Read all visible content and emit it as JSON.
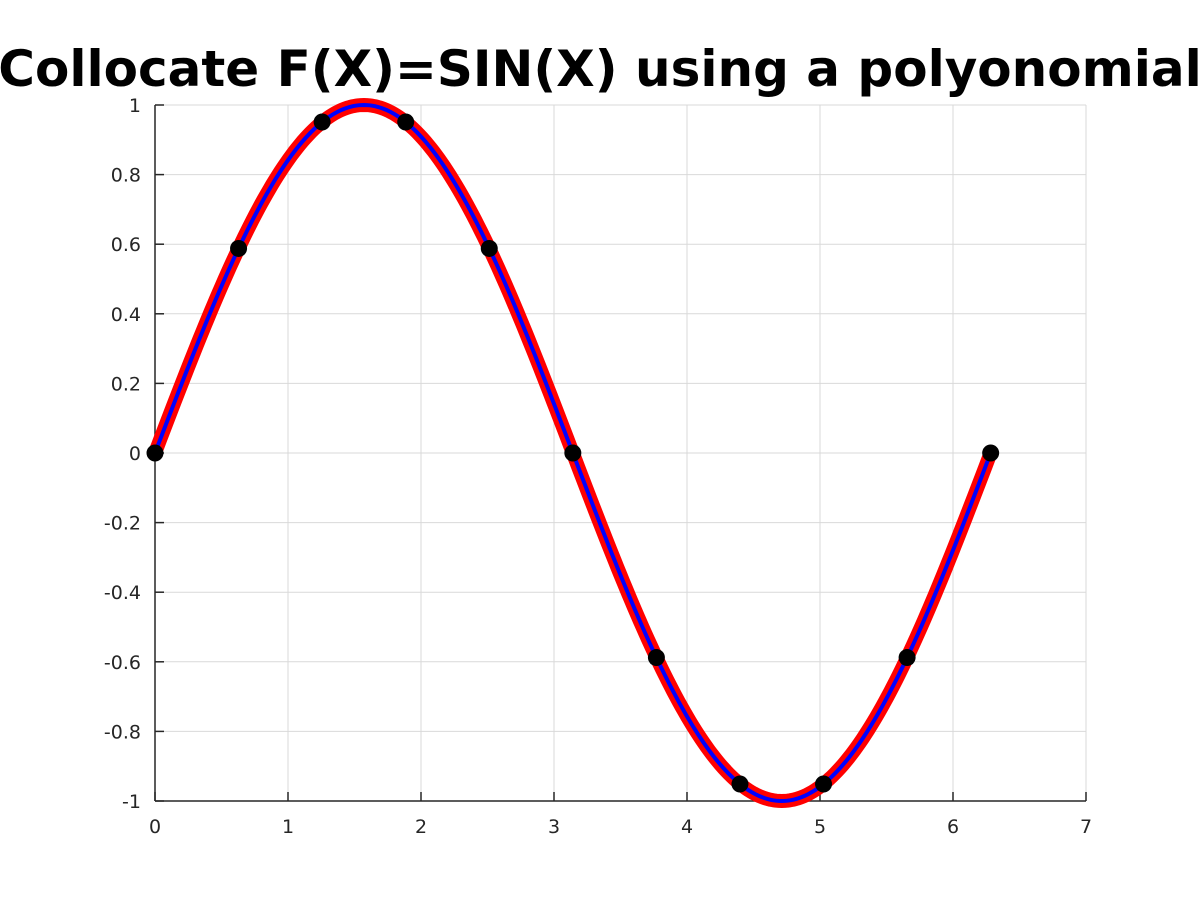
{
  "chart_data": {
    "type": "line",
    "title": "Collocate F(X)=SIN(X) using a polyonomial",
    "xlabel": "",
    "ylabel": "",
    "xlim": [
      0,
      7
    ],
    "ylim": [
      -1,
      1
    ],
    "x_ticks": [
      "0",
      "1",
      "2",
      "3",
      "4",
      "5",
      "6",
      "7"
    ],
    "y_ticks": [
      "1",
      "0.8",
      "0.6",
      "0.4",
      "0.2",
      "0",
      "-0.2",
      "-0.4",
      "-0.6",
      "-0.8",
      "-1"
    ],
    "grid": true,
    "function": "sin(x)",
    "curve_x_range": [
      0,
      6.2832
    ],
    "series": [
      {
        "style": "thick-line",
        "color": "#ff0000"
      },
      {
        "style": "thin-line",
        "color": "#0000ff"
      }
    ],
    "collocation_points": {
      "color": "#000000",
      "x": [
        0,
        0.6283,
        1.2566,
        1.885,
        2.5133,
        3.1416,
        3.7699,
        4.3982,
        5.0265,
        5.6549,
        6.2832
      ],
      "y": [
        0,
        0.5878,
        0.9511,
        0.9511,
        0.5878,
        0,
        -0.5878,
        -0.9511,
        -0.9511,
        -0.5878,
        0
      ]
    }
  }
}
